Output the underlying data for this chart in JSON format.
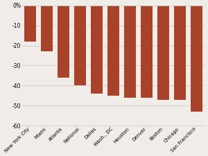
{
  "categories": [
    "New York City",
    "Miami",
    "Atlanta",
    "National",
    "Dallas",
    "Wash., DC",
    "Houston",
    "Denver",
    "Boston",
    "Chicago",
    "San Francisco"
  ],
  "values": [
    -18,
    -23,
    -36,
    -40,
    -44,
    -45,
    -46,
    -46,
    -47,
    -47,
    -53
  ],
  "bar_color": "#a8432a",
  "background_color": "#f0ede8",
  "ylim": [
    -60,
    0
  ],
  "yticks": [
    0,
    -10,
    -20,
    -30,
    -40,
    -50,
    -60
  ],
  "ytick_labels": [
    "0%",
    "-10",
    "-20",
    "-30",
    "-40",
    "-50",
    "-60"
  ],
  "grid_color": "#cccccc",
  "bar_width": 0.7
}
